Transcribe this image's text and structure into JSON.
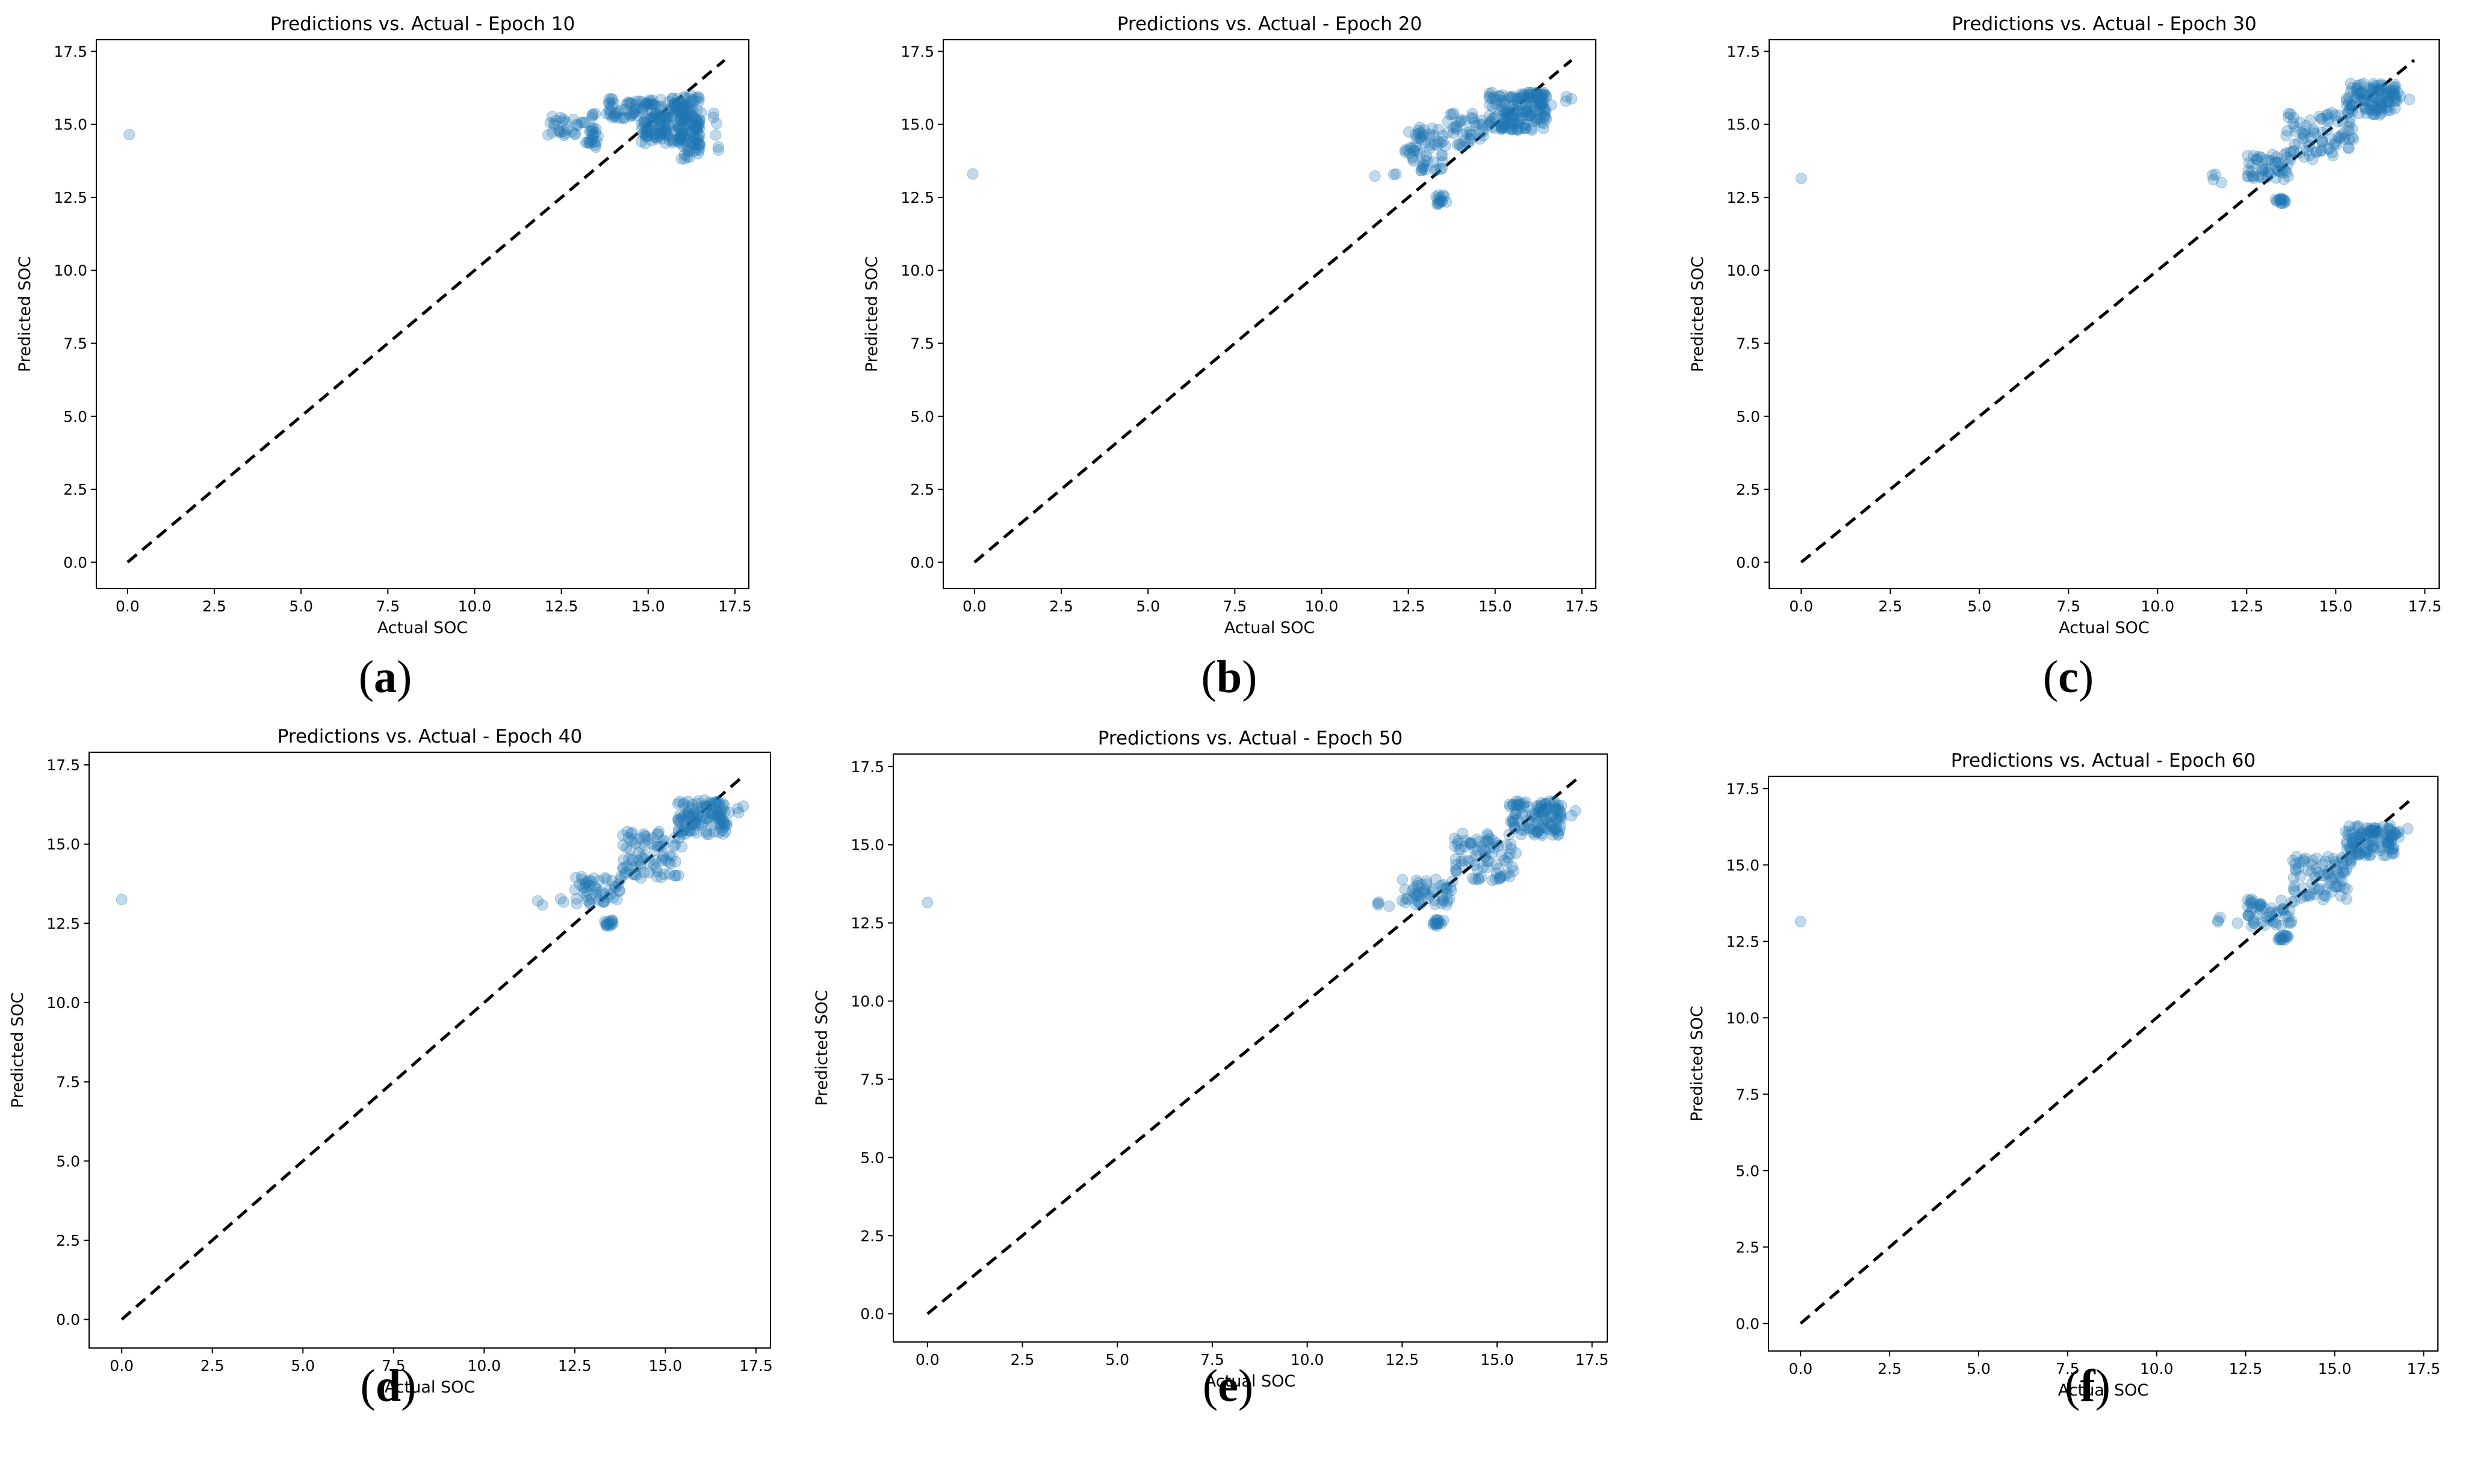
{
  "figure": {
    "colors": {
      "points": "#1f77b4",
      "reference": "#000000",
      "axes": "#000000"
    }
  },
  "chart_data": [
    {
      "type": "scatter",
      "panel": "a",
      "title": "Predictions vs. Actual - Epoch 10",
      "xlabel": "Actual SOC",
      "ylabel": "Predicted SOC",
      "xlim": [
        -0.9,
        17.9
      ],
      "ylim": [
        -0.9,
        17.9
      ],
      "xticks": [
        "0.0",
        "2.5",
        "5.0",
        "7.5",
        "10.0",
        "12.5",
        "15.0",
        "17.5"
      ],
      "yticks": [
        "0.0",
        "2.5",
        "5.0",
        "7.5",
        "10.0",
        "12.5",
        "15.0",
        "17.5"
      ],
      "reference_line": [
        [
          0,
          0
        ],
        [
          17.2,
          17.2
        ]
      ],
      "outlier": [
        0.05,
        14.65
      ],
      "clusters": [
        {
          "x": [
            12.1,
            13.5
          ],
          "y": [
            14.6,
            15.4
          ],
          "n": 40
        },
        {
          "x": [
            13.2,
            13.6
          ],
          "y": [
            14.2,
            14.6
          ],
          "n": 12
        },
        {
          "x": [
            13.8,
            16.3
          ],
          "y": [
            15.2,
            15.9
          ],
          "n": 110
        },
        {
          "x": [
            14.8,
            16.5
          ],
          "y": [
            14.3,
            15.3
          ],
          "n": 120
        },
        {
          "x": [
            15.8,
            16.5
          ],
          "y": [
            13.8,
            16.1
          ],
          "n": 70
        },
        {
          "x": [
            16.2,
            17.2
          ],
          "y": [
            14.1,
            15.7
          ],
          "n": 10
        }
      ]
    },
    {
      "type": "scatter",
      "panel": "b",
      "title": "Predictions vs. Actual - Epoch 20",
      "xlabel": "Actual SOC",
      "ylabel": "Predicted SOC",
      "xlim": [
        -0.9,
        17.9
      ],
      "ylim": [
        -0.9,
        17.9
      ],
      "xticks": [
        "0.0",
        "2.5",
        "5.0",
        "7.5",
        "10.0",
        "12.5",
        "15.0",
        "17.5"
      ],
      "yticks": [
        "0.0",
        "2.5",
        "5.0",
        "7.5",
        "10.0",
        "12.5",
        "15.0",
        "17.5"
      ],
      "reference_line": [
        [
          0,
          0
        ],
        [
          17.2,
          17.2
        ]
      ],
      "outlier": [
        -0.05,
        13.3
      ],
      "clusters": [
        {
          "x": [
            11.5,
            12.2
          ],
          "y": [
            13.2,
            13.4
          ],
          "n": 3
        },
        {
          "x": [
            12.4,
            13.6
          ],
          "y": [
            13.4,
            14.9
          ],
          "n": 60
        },
        {
          "x": [
            13.3,
            13.6
          ],
          "y": [
            12.2,
            12.6
          ],
          "n": 14
        },
        {
          "x": [
            13.6,
            14.8
          ],
          "y": [
            14.2,
            15.4
          ],
          "n": 40
        },
        {
          "x": [
            14.8,
            16.5
          ],
          "y": [
            14.8,
            16.1
          ],
          "n": 170
        },
        {
          "x": [
            16.2,
            17.2
          ],
          "y": [
            15.4,
            16.0
          ],
          "n": 10
        }
      ]
    },
    {
      "type": "scatter",
      "panel": "c",
      "title": "Predictions vs. Actual - Epoch 30",
      "xlabel": "Actual SOC",
      "ylabel": "Predicted SOC",
      "xlim": [
        -0.9,
        17.9
      ],
      "ylim": [
        -0.9,
        17.9
      ],
      "xticks": [
        "0.0",
        "2.5",
        "5.0",
        "7.5",
        "10.0",
        "12.5",
        "15.0",
        "17.5"
      ],
      "yticks": [
        "0.0",
        "2.5",
        "5.0",
        "7.5",
        "10.0",
        "12.5",
        "15.0",
        "17.5"
      ],
      "reference_line": [
        [
          0,
          0
        ],
        [
          17.2,
          17.2
        ]
      ],
      "outlier": [
        0.0,
        13.15
      ],
      "clusters": [
        {
          "x": [
            11.5,
            12.3
          ],
          "y": [
            13.0,
            13.3
          ],
          "n": 4
        },
        {
          "x": [
            12.5,
            13.7
          ],
          "y": [
            13.1,
            14.0
          ],
          "n": 50
        },
        {
          "x": [
            13.3,
            13.6
          ],
          "y": [
            12.3,
            12.5
          ],
          "n": 14
        },
        {
          "x": [
            13.6,
            15.5
          ],
          "y": [
            13.8,
            15.4
          ],
          "n": 80
        },
        {
          "x": [
            15.3,
            16.7
          ],
          "y": [
            15.3,
            16.4
          ],
          "n": 110
        },
        {
          "x": [
            16.4,
            17.2
          ],
          "y": [
            15.8,
            16.2
          ],
          "n": 6
        }
      ]
    },
    {
      "type": "scatter",
      "panel": "d",
      "title": "Predictions vs. Actual - Epoch 40",
      "xlabel": "Actual SOC",
      "ylabel": "Predicted SOC",
      "xlim": [
        -0.9,
        17.9
      ],
      "ylim": [
        -0.9,
        17.9
      ],
      "xticks": [
        "0.0",
        "2.5",
        "5.0",
        "7.5",
        "10.0",
        "12.5",
        "15.0",
        "17.5"
      ],
      "yticks": [
        "0.0",
        "2.5",
        "5.0",
        "7.5",
        "10.0",
        "12.5",
        "15.0",
        "17.5"
      ],
      "reference_line": [
        [
          0,
          0
        ],
        [
          17.2,
          17.2
        ]
      ],
      "outlier": [
        0.0,
        13.25
      ],
      "clusters": [
        {
          "x": [
            11.4,
            12.4
          ],
          "y": [
            13.0,
            13.3
          ],
          "n": 4
        },
        {
          "x": [
            12.5,
            13.8
          ],
          "y": [
            13.1,
            14.0
          ],
          "n": 50
        },
        {
          "x": [
            13.3,
            13.6
          ],
          "y": [
            12.4,
            12.6
          ],
          "n": 14
        },
        {
          "x": [
            13.8,
            15.5
          ],
          "y": [
            13.9,
            15.4
          ],
          "n": 80
        },
        {
          "x": [
            15.3,
            16.7
          ],
          "y": [
            15.3,
            16.4
          ],
          "n": 110
        },
        {
          "x": [
            16.4,
            17.2
          ],
          "y": [
            15.8,
            16.2
          ],
          "n": 6
        }
      ]
    },
    {
      "type": "scatter",
      "panel": "e",
      "title": "Predictions vs. Actual - Epoch 50",
      "xlabel": "Actual SOC",
      "ylabel": "Predicted SOC",
      "xlim": [
        -0.9,
        17.9
      ],
      "ylim": [
        -0.9,
        17.9
      ],
      "xticks": [
        "0.0",
        "2.5",
        "5.0",
        "7.5",
        "10.0",
        "12.5",
        "15.0",
        "17.5"
      ],
      "yticks": [
        "0.0",
        "2.5",
        "5.0",
        "7.5",
        "10.0",
        "12.5",
        "15.0",
        "17.5"
      ],
      "reference_line": [
        [
          0,
          0
        ],
        [
          17.2,
          17.2
        ]
      ],
      "outlier": [
        0.0,
        13.15
      ],
      "clusters": [
        {
          "x": [
            11.5,
            12.4
          ],
          "y": [
            13.0,
            13.2
          ],
          "n": 4
        },
        {
          "x": [
            12.5,
            13.8
          ],
          "y": [
            13.0,
            13.9
          ],
          "n": 50
        },
        {
          "x": [
            13.3,
            13.6
          ],
          "y": [
            12.4,
            12.6
          ],
          "n": 14
        },
        {
          "x": [
            13.8,
            15.5
          ],
          "y": [
            13.8,
            15.4
          ],
          "n": 80
        },
        {
          "x": [
            15.3,
            16.7
          ],
          "y": [
            15.3,
            16.4
          ],
          "n": 110
        },
        {
          "x": [
            16.4,
            17.2
          ],
          "y": [
            15.9,
            16.2
          ],
          "n": 6
        }
      ]
    },
    {
      "type": "scatter",
      "panel": "f",
      "title": "Predictions vs. Actual - Epoch 60",
      "xlabel": "Actual SOC",
      "ylabel": "Predicted SOC",
      "xlim": [
        -0.9,
        17.9
      ],
      "ylim": [
        -0.9,
        17.9
      ],
      "xticks": [
        "0.0",
        "2.5",
        "5.0",
        "7.5",
        "10.0",
        "12.5",
        "15.0",
        "17.5"
      ],
      "yticks": [
        "0.0",
        "2.5",
        "5.0",
        "7.5",
        "10.0",
        "12.5",
        "15.0",
        "17.5"
      ],
      "reference_line": [
        [
          0,
          0
        ],
        [
          17.2,
          17.2
        ]
      ],
      "outlier": [
        0.0,
        13.15
      ],
      "clusters": [
        {
          "x": [
            11.5,
            12.4
          ],
          "y": [
            13.0,
            13.3
          ],
          "n": 4
        },
        {
          "x": [
            12.5,
            13.8
          ],
          "y": [
            13.0,
            13.9
          ],
          "n": 50
        },
        {
          "x": [
            13.4,
            13.7
          ],
          "y": [
            12.5,
            12.7
          ],
          "n": 14
        },
        {
          "x": [
            13.8,
            15.5
          ],
          "y": [
            13.8,
            15.3
          ],
          "n": 80
        },
        {
          "x": [
            15.3,
            16.7
          ],
          "y": [
            15.3,
            16.3
          ],
          "n": 110
        },
        {
          "x": [
            16.4,
            17.2
          ],
          "y": [
            15.9,
            16.2
          ],
          "n": 6
        }
      ]
    }
  ]
}
